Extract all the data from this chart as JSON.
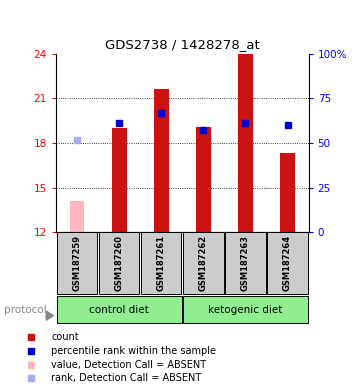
{
  "title": "GDS2738 / 1428278_at",
  "samples": [
    "GSM187259",
    "GSM187260",
    "GSM187261",
    "GSM187262",
    "GSM187263",
    "GSM187264"
  ],
  "count_values": [
    null,
    19.0,
    21.6,
    19.1,
    24.0,
    17.3
  ],
  "count_absent": [
    14.1,
    null,
    null,
    null,
    null,
    null
  ],
  "rank_present_show": [
    null,
    19.35,
    20.0,
    18.9,
    19.35,
    19.2
  ],
  "rank_absent": [
    18.2,
    null,
    null,
    null,
    null,
    null
  ],
  "ylim_left": [
    12,
    24
  ],
  "ylim_right": [
    0,
    100
  ],
  "yticks_left": [
    12,
    15,
    18,
    21,
    24
  ],
  "yticks_right": [
    0,
    25,
    50,
    75,
    100
  ],
  "ytick_labels_right": [
    "0",
    "25",
    "50",
    "75",
    "100%"
  ],
  "bar_color": "#CC1111",
  "bar_absent_color": "#FFB6C1",
  "rank_color": "#0000CC",
  "rank_absent_color": "#AAAAEE",
  "bar_width": 0.35,
  "bg_color": "#CCCCCC",
  "legend_items": [
    {
      "color": "#CC1111",
      "label": "count"
    },
    {
      "color": "#0000CC",
      "label": "percentile rank within the sample"
    },
    {
      "color": "#FFB6C1",
      "label": "value, Detection Call = ABSENT"
    },
    {
      "color": "#AAAAEE",
      "label": "rank, Detection Call = ABSENT"
    }
  ]
}
